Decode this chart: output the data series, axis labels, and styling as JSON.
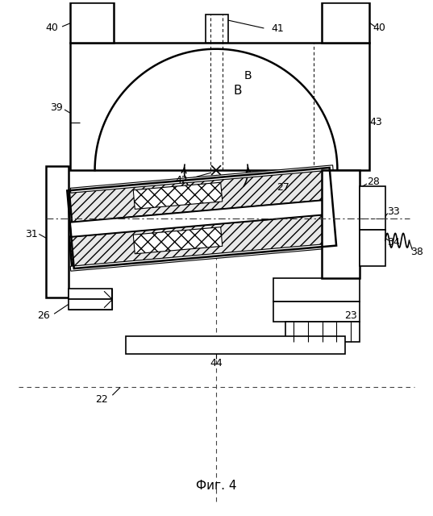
{
  "title": "Фиг. 4",
  "background_color": "#ffffff",
  "fig_width": 5.37,
  "fig_height": 6.4,
  "dpi": 100
}
